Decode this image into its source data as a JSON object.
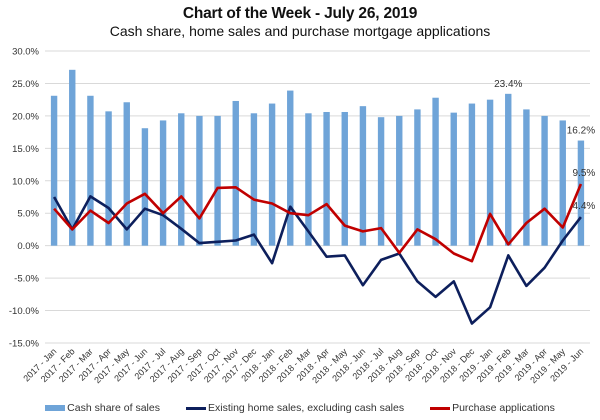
{
  "header": {
    "title": "Chart of the Week - July 26, 2019",
    "subtitle": "Cash share, home sales and purchase mortgage applications"
  },
  "chart_data": {
    "type": "bar+line",
    "title": "Chart of the Week - July 26, 2019",
    "subtitle": "Cash share, home sales and purchase mortgage applications",
    "xlabel": "",
    "ylabel": "",
    "ylim": [
      -15,
      30
    ],
    "yticks": [
      30,
      25,
      20,
      15,
      10,
      5,
      0,
      -5,
      -10,
      -15
    ],
    "ytick_labels": [
      "30.0%",
      "25.0%",
      "20.0%",
      "15.0%",
      "10.0%",
      "5.0%",
      "0.0%",
      "-5.0%",
      "-10.0%",
      "-15.0%"
    ],
    "grid": true,
    "legend_position": "bottom",
    "categories": [
      "2017 - Jan",
      "2017 - Feb",
      "2017 - Mar",
      "2017 - Apr",
      "2017 - May",
      "2017 - Jun",
      "2017 - Jul",
      "2017 - Aug",
      "2017 - Sep",
      "2017 - Oct",
      "2017 - Nov",
      "2017 - Dec",
      "2018 - Jan",
      "2018 - Feb",
      "2018 - Mar",
      "2018 - Apr",
      "2018 - May",
      "2018 - Jun",
      "2018 - Jul",
      "2018 - Aug",
      "2018 - Sep",
      "2018 - Oct",
      "2018 - Nov",
      "2018 - Dec",
      "2019 - Jan",
      "2019 - Feb",
      "2019 - Mar",
      "2019 - Apr",
      "2019 - May",
      "2019 - Jun"
    ],
    "series": [
      {
        "name": "Cash share of sales",
        "type": "bar",
        "color": "#6FA4D8",
        "values": [
          23.1,
          27.1,
          23.1,
          20.7,
          22.1,
          18.1,
          19.3,
          20.4,
          20.0,
          20.0,
          22.3,
          20.4,
          21.9,
          23.9,
          20.4,
          20.6,
          20.6,
          21.5,
          19.8,
          20.0,
          21.0,
          22.8,
          20.5,
          21.9,
          22.5,
          23.4,
          21.0,
          20.0,
          19.3,
          16.2
        ]
      },
      {
        "name": "Existing home sales, excluding cash sales",
        "type": "line",
        "color": "#0D1F5C",
        "values": [
          7.5,
          2.5,
          7.6,
          5.8,
          2.5,
          5.7,
          4.7,
          2.6,
          0.4,
          0.6,
          0.8,
          1.7,
          -2.7,
          6.0,
          2.2,
          -1.7,
          -1.5,
          -6.1,
          -2.2,
          -1.2,
          -5.5,
          -7.9,
          -5.5,
          -12.0,
          -9.5,
          -1.5,
          -6.2,
          -3.4,
          0.8,
          4.4
        ]
      },
      {
        "name": "Purchase applications",
        "type": "line",
        "color": "#C00000",
        "values": [
          5.7,
          2.5,
          5.4,
          3.5,
          6.5,
          8.0,
          5.0,
          7.6,
          4.2,
          8.9,
          9.0,
          7.1,
          6.5,
          5.0,
          4.7,
          6.4,
          3.1,
          2.2,
          2.7,
          -1.1,
          2.5,
          1.0,
          -1.2,
          -2.4,
          4.9,
          0.2,
          3.5,
          5.7,
          2.8,
          9.5
        ]
      }
    ],
    "annotations": [
      {
        "series": "Cash share of sales",
        "category": "2019 - Feb",
        "text": "23.4%"
      },
      {
        "series": "Cash share of sales",
        "category": "2019 - Jun",
        "text": "16.2%"
      },
      {
        "series": "Purchase applications",
        "category": "2019 - Jun",
        "text": "9.5%"
      },
      {
        "series": "Existing home sales, excluding cash sales",
        "category": "2019 - Jun",
        "text": "4.4%"
      }
    ]
  },
  "legend": {
    "items": [
      {
        "label": "Cash share of sales",
        "kind": "bar",
        "color": "#6FA4D8"
      },
      {
        "label": "Existing home sales, excluding cash sales",
        "kind": "line",
        "color": "#0D1F5C"
      },
      {
        "label": "Purchase applications",
        "kind": "line",
        "color": "#C00000"
      }
    ]
  }
}
